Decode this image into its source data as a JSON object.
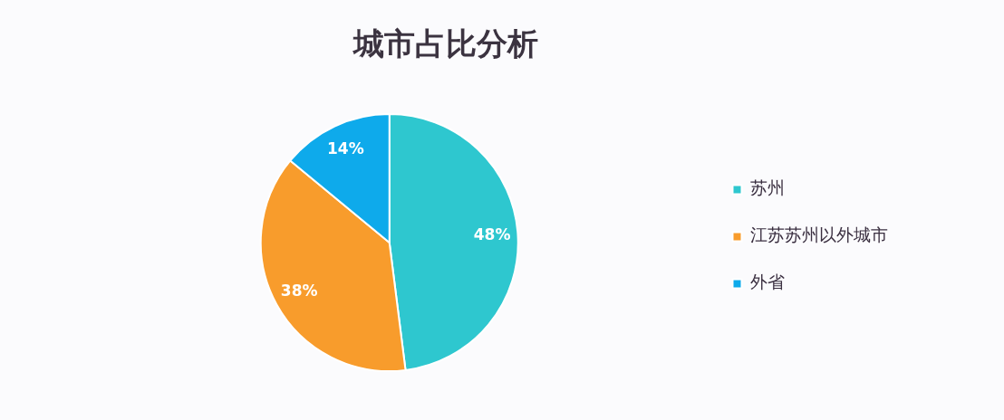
{
  "chart_data": {
    "type": "pie",
    "title": "城市占比分析",
    "categories": [
      "苏州",
      "江苏苏州以外城市",
      "外省"
    ],
    "values": [
      48,
      38,
      14
    ],
    "colors": [
      "#2ec7cf",
      "#f89c2c",
      "#0eaaeb"
    ],
    "value_labels": [
      "48%",
      "38%",
      "14%"
    ],
    "legend": "right"
  }
}
